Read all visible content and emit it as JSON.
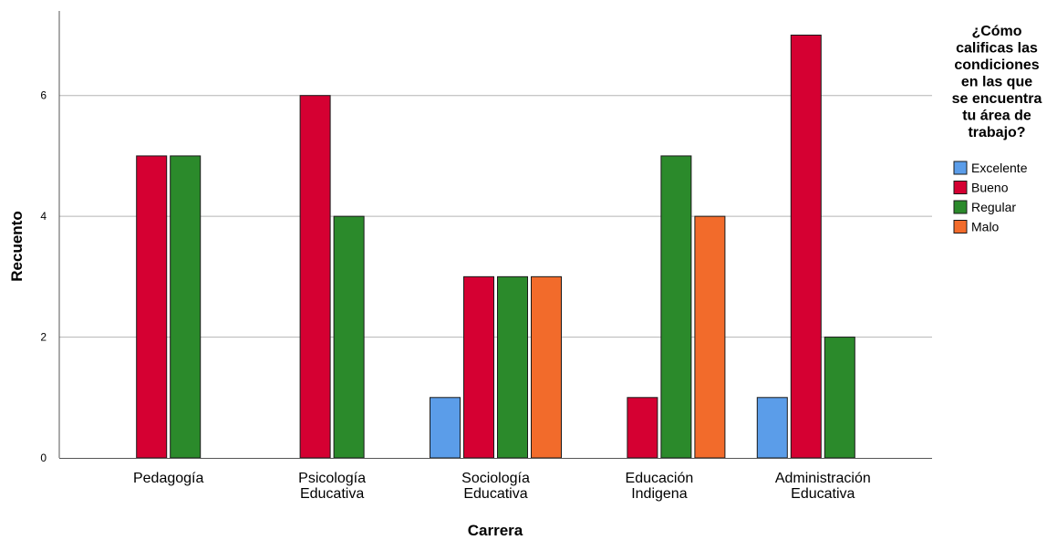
{
  "chart_data": {
    "type": "bar",
    "xlabel": "Carrera",
    "ylabel": "Recuento",
    "ylim": [
      0,
      7.4
    ],
    "yticks": [
      0,
      2,
      4,
      6
    ],
    "grid": true,
    "legend_position": "right",
    "legend_title": [
      "¿Cómo",
      "calificas las",
      "condiciones",
      "en las que",
      "se encuentra",
      "tu área de",
      "trabajo?"
    ],
    "categories": [
      [
        "Pedagogía"
      ],
      [
        "Psicología",
        "Educativa"
      ],
      [
        "Sociología",
        "Educativa"
      ],
      [
        "Educación",
        "Indigena"
      ],
      [
        "Administración",
        "Educativa"
      ]
    ],
    "series": [
      {
        "name": "Excelente",
        "color": "#5b9de9",
        "values": [
          0,
          0,
          1,
          0,
          1
        ]
      },
      {
        "name": "Bueno",
        "color": "#d50032",
        "values": [
          5,
          6,
          3,
          1,
          7
        ]
      },
      {
        "name": "Regular",
        "color": "#2b8a2b",
        "values": [
          5,
          4,
          3,
          5,
          2
        ]
      },
      {
        "name": "Malo",
        "color": "#f26b2b",
        "values": [
          0,
          0,
          3,
          4,
          0
        ]
      }
    ]
  }
}
